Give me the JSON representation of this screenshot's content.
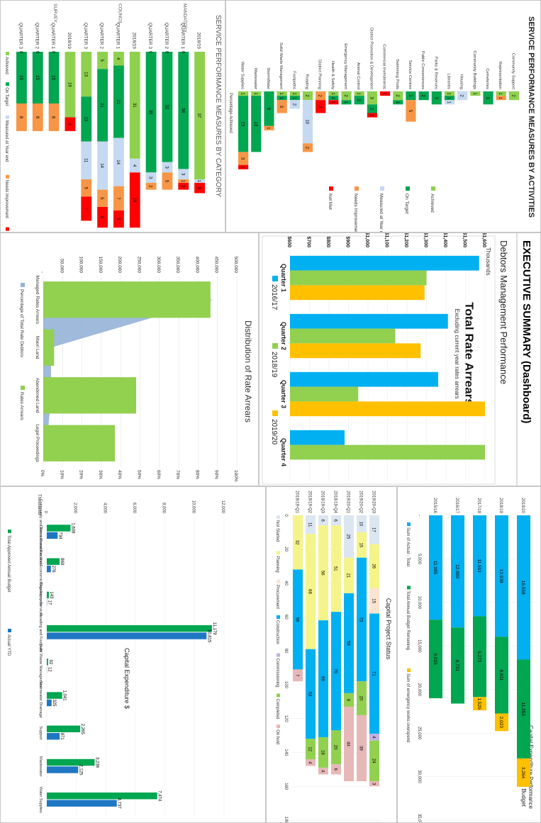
{
  "colors": {
    "achieved": "#8fd14f",
    "on_target": "#00a650",
    "measured": "#c5d9f1",
    "needs": "#f79646",
    "not_met": "#ff0000",
    "blue": "#00b0f0",
    "yellow": "#ffc000",
    "orange": "#f5a623",
    "dark_blue": "#1f77c4",
    "green_light": "#92d050",
    "lavender": "#c3b1e1",
    "pink": "#e6b8b7",
    "pale_yellow": "#f4f48a",
    "grey_blue": "#dce6f1",
    "area": "#95b3d7"
  },
  "category": {
    "title": "SERVICE PERFORMANCE MEASURES BY CATEGORY",
    "groups": [
      "MANDATORY",
      "COUNCIL",
      "SURVEY"
    ],
    "legend": [
      "Achieved",
      "On Target",
      "Measured at Year end",
      "Needs Improvement",
      "Not Met"
    ],
    "rows": [
      {
        "label": "2018/19",
        "segs": [
          37,
          0,
          1,
          0,
          3
        ]
      },
      {
        "label": "QUARTER 1",
        "segs": [
          0,
          34,
          3,
          1,
          2
        ]
      },
      {
        "label": "QUARTER 2",
        "segs": [
          0,
          32,
          3,
          5,
          0
        ]
      },
      {
        "label": "QUARTER 3",
        "segs": [
          0,
          35,
          3,
          2,
          0
        ]
      },
      {
        "label": "2018/19",
        "segs": [
          31,
          0,
          4,
          0,
          16
        ]
      },
      {
        "label": "QUARTER 1",
        "segs": [
          4,
          21,
          14,
          7,
          5
        ]
      },
      {
        "label": "QUARTER 2",
        "segs": [
          5,
          21,
          14,
          5,
          6
        ]
      },
      {
        "label": "QUARTER 3",
        "segs": [
          13,
          13,
          11,
          5,
          7
        ]
      },
      {
        "label": "2018/19",
        "segs": [
          19,
          0,
          0,
          0,
          4
        ]
      },
      {
        "label": "QUARTER 1",
        "segs": [
          0,
          15,
          0,
          8,
          0
        ]
      },
      {
        "label": "QUARTER 2",
        "segs": [
          0,
          15,
          0,
          8,
          0
        ]
      },
      {
        "label": "QUARTER 3",
        "segs": [
          0,
          15,
          0,
          8,
          0
        ]
      }
    ],
    "zero_label": "0"
  },
  "activities": {
    "title": "SERVICE PERFORMANCE MEASURES BY ACTIVITIES",
    "axis_label": "Percentage Achieved",
    "legend": [
      "Achieved",
      "On Target",
      "Measured at Year end",
      "Needs Improvement",
      "Not Met"
    ],
    "rows": [
      {
        "label": "Community Support",
        "segs": [
          2,
          0,
          0,
          0,
          0
        ]
      },
      {
        "label": "Representation",
        "segs": [
          1,
          0,
          0,
          1,
          0
        ]
      },
      {
        "label": "Cemeteries",
        "segs": [
          0,
          3,
          0,
          0,
          0
        ]
      },
      {
        "label": "Community Buildings",
        "segs": [
          1,
          0,
          0,
          0,
          0
        ]
      },
      {
        "label": "Housing",
        "segs": [
          0,
          0,
          2,
          0,
          0
        ]
      },
      {
        "label": "Libraries",
        "segs": [
          1,
          1,
          1,
          0,
          0
        ]
      },
      {
        "label": "Parks & Reserves",
        "segs": [
          0,
          3,
          0,
          0,
          0
        ]
      },
      {
        "label": "Public Conveniences",
        "segs": [
          0,
          2,
          0,
          0,
          0
        ]
      },
      {
        "label": "Service Centres",
        "segs": [
          0,
          2,
          0,
          5,
          0
        ]
      },
      {
        "label": "Swimming Pools",
        "segs": [
          2,
          1,
          0,
          0,
          0
        ]
      },
      {
        "label": "Commercial Investments",
        "segs": [
          0,
          0,
          0,
          0,
          1
        ]
      },
      {
        "label": "District Promotion & Development",
        "segs": [
          3,
          2,
          0,
          0,
          1
        ]
      },
      {
        "label": "Animal Control",
        "segs": [
          1,
          2,
          0,
          0,
          0
        ]
      },
      {
        "label": "Emergency Management",
        "segs": [
          2,
          1,
          0,
          0,
          0
        ]
      },
      {
        "label": "Health & Safety",
        "segs": [
          1,
          1,
          0,
          0,
          1
        ]
      },
      {
        "label": "District Planning",
        "segs": [
          0,
          0,
          0,
          2,
          3
        ]
      },
      {
        "label": "Roading",
        "segs": [
          2,
          0,
          10,
          2,
          0
        ]
      },
      {
        "label": "Footpaths",
        "segs": [
          1,
          1,
          2,
          0,
          0
        ]
      },
      {
        "label": "Solid Waste Management",
        "segs": [
          1,
          1,
          0,
          3,
          0
        ]
      },
      {
        "label": "StormWater",
        "segs": [
          0,
          8,
          0,
          1,
          0
        ]
      },
      {
        "label": "Wastewater",
        "segs": [
          1,
          13,
          0,
          0,
          0
        ]
      },
      {
        "label": "Water Supplies",
        "segs": [
          1,
          13,
          0,
          3,
          1
        ]
      }
    ]
  },
  "exec": {
    "title": "EXECUTIVE SUMMARY (Dashboard)",
    "subtitle": "Debtors Management Performance"
  },
  "arrears": {
    "title": "Total Rate Arrears",
    "subtitle": "Excluding current year rates arrears",
    "unit": "Thousands",
    "categories": [
      "Quarter 1",
      "Quarter 2",
      "Quarter 3",
      "Quarter 4"
    ],
    "series": [
      {
        "name": "2016/17",
        "values": [
          1570,
          1410,
          1360,
          880
        ]
      },
      {
        "name": "2018/19",
        "values": [
          1300,
          1140,
          950,
          1600
        ]
      },
      {
        "name": "2019/20",
        "values": [
          1290,
          1270,
          1600,
          0
        ]
      }
    ],
    "yticks": [
      "$600",
      "$700",
      "$800",
      "$900",
      "$1,000",
      "$1,100",
      "$1,200",
      "$1,300",
      "$1,400",
      "$1,500",
      "$1,600"
    ],
    "ylim": [
      600,
      1600
    ]
  },
  "distribution": {
    "title": "Distribution of Rate Arrears",
    "categories": [
      "Managed Rates Arrears",
      "Maori Land",
      "Abandoned Land",
      "Legal Proceedings"
    ],
    "bars": [
      432000,
      28000,
      240000,
      185000
    ],
    "pct": [
      88,
      4,
      4,
      2
    ],
    "yticks": [
      "-",
      "50,000",
      "100,000",
      "150,000",
      "200,000",
      "250,000",
      "300,000",
      "350,000",
      "400,000",
      "450,000",
      "500,000"
    ],
    "ptick": [
      "0%",
      "10%",
      "20%",
      "30%",
      "40%",
      "50%",
      "60%",
      "70%",
      "80%",
      "90%",
      "100%"
    ],
    "legend": [
      "Percentage of Total Rate Debtors",
      "Rates Arrears"
    ]
  },
  "capex_perf": {
    "title": "Capital Expenditure Performance",
    "subtitle": "Actual vs Whole of year Budget",
    "rows": [
      {
        "label": "2015/16",
        "segs": [
          11985,
          9015,
          0
        ]
      },
      {
        "label": "2016/17",
        "segs": [
          12880,
          8731,
          0
        ]
      },
      {
        "label": "2017/18",
        "segs": [
          11591,
          9272,
          1529
        ]
      },
      {
        "label": "2018/19",
        "segs": [
          13938,
          8811,
          2023
        ]
      },
      {
        "label": "2019/20",
        "segs": [
          16558,
          11353,
          3264
        ]
      }
    ],
    "seg_labels": [
      [
        "11,985",
        "9,015",
        ""
      ],
      [
        "12,880",
        "8,731",
        ""
      ],
      [
        "11,591",
        "9,272",
        "1,529"
      ],
      [
        "13,938",
        "8,811",
        "2,023"
      ],
      [
        "16,558",
        "11,353",
        "3,264"
      ]
    ],
    "xticks": [
      "-",
      "5,000",
      "10,000",
      "15,000",
      "20,000",
      "25,000",
      "30,000",
      "35,000"
    ],
    "legend": [
      "Sum of Actual - Total",
      "Total Annual Budget Remaining",
      "Sum of emergency works overspend"
    ]
  },
  "proj_status": {
    "title": "Capital Project Status",
    "rows": [
      {
        "label": "2019/20-Q3",
        "segs": [
          17,
          26,
          15,
          71,
          4,
          24,
          3
        ]
      },
      {
        "label": "2019/20-Q2",
        "segs": [
          10,
          15,
          0,
          73,
          0,
          20,
          39
        ]
      },
      {
        "label": "2019/20-Q1",
        "segs": [
          25,
          21,
          0,
          59,
          0,
          8,
          44
        ]
      },
      {
        "label": "2018/19-Q4",
        "segs": [
          6,
          51,
          0,
          70,
          0,
          20,
          6
        ]
      },
      {
        "label": "2018/19-Q3",
        "segs": [
          6,
          56,
          0,
          69,
          0,
          18,
          4
        ]
      },
      {
        "label": "2018/19-Q2",
        "segs": [
          11,
          68,
          0,
          53,
          0,
          12,
          4
        ]
      },
      {
        "label": "2018/19-Q1",
        "segs": [
          0,
          32,
          0,
          59,
          0,
          0,
          7
        ]
      }
    ],
    "xticks": [
      "0",
      "20",
      "40",
      "60",
      "80",
      "100",
      "120",
      "140",
      "160",
      "180"
    ],
    "legend": [
      "Not Started",
      "Planning",
      "Procurement",
      "Construction",
      "Commissioning",
      "Completed",
      "On hold"
    ]
  },
  "capex_cat": {
    "title": "Capital Expenditure $",
    "unit": "Thousands",
    "categories": [
      "Community and Recreational Facilities",
      "District Promotion and Economic Development",
      "Regulatory Services",
      "Roading and Footpath",
      "Solid Waste Management",
      "Stormwater Drainage",
      "Support",
      "Wastewater",
      "Water Supplies"
    ],
    "budget": [
      1608,
      869,
      143,
      11179,
      92,
      1041,
      2265,
      3239,
      7474
    ],
    "actual": [
      734,
      276,
      17,
      10815,
      12,
      325,
      871,
      2125,
      4737
    ],
    "budget_labels": [
      "1,608",
      "869",
      "143",
      "11,179",
      "92",
      "1,041",
      "2,265",
      "3,239",
      "7,474"
    ],
    "actual_labels": [
      "734",
      "276",
      "17",
      "10,815",
      "12",
      "325",
      "871",
      "2,125",
      "4,737"
    ],
    "yticks": [
      "0",
      "2,000",
      "4,000",
      "6,000",
      "8,000",
      "10,000",
      "12,000"
    ],
    "legend": [
      "Total Approved Annual Budget",
      "Actual YTD"
    ]
  }
}
